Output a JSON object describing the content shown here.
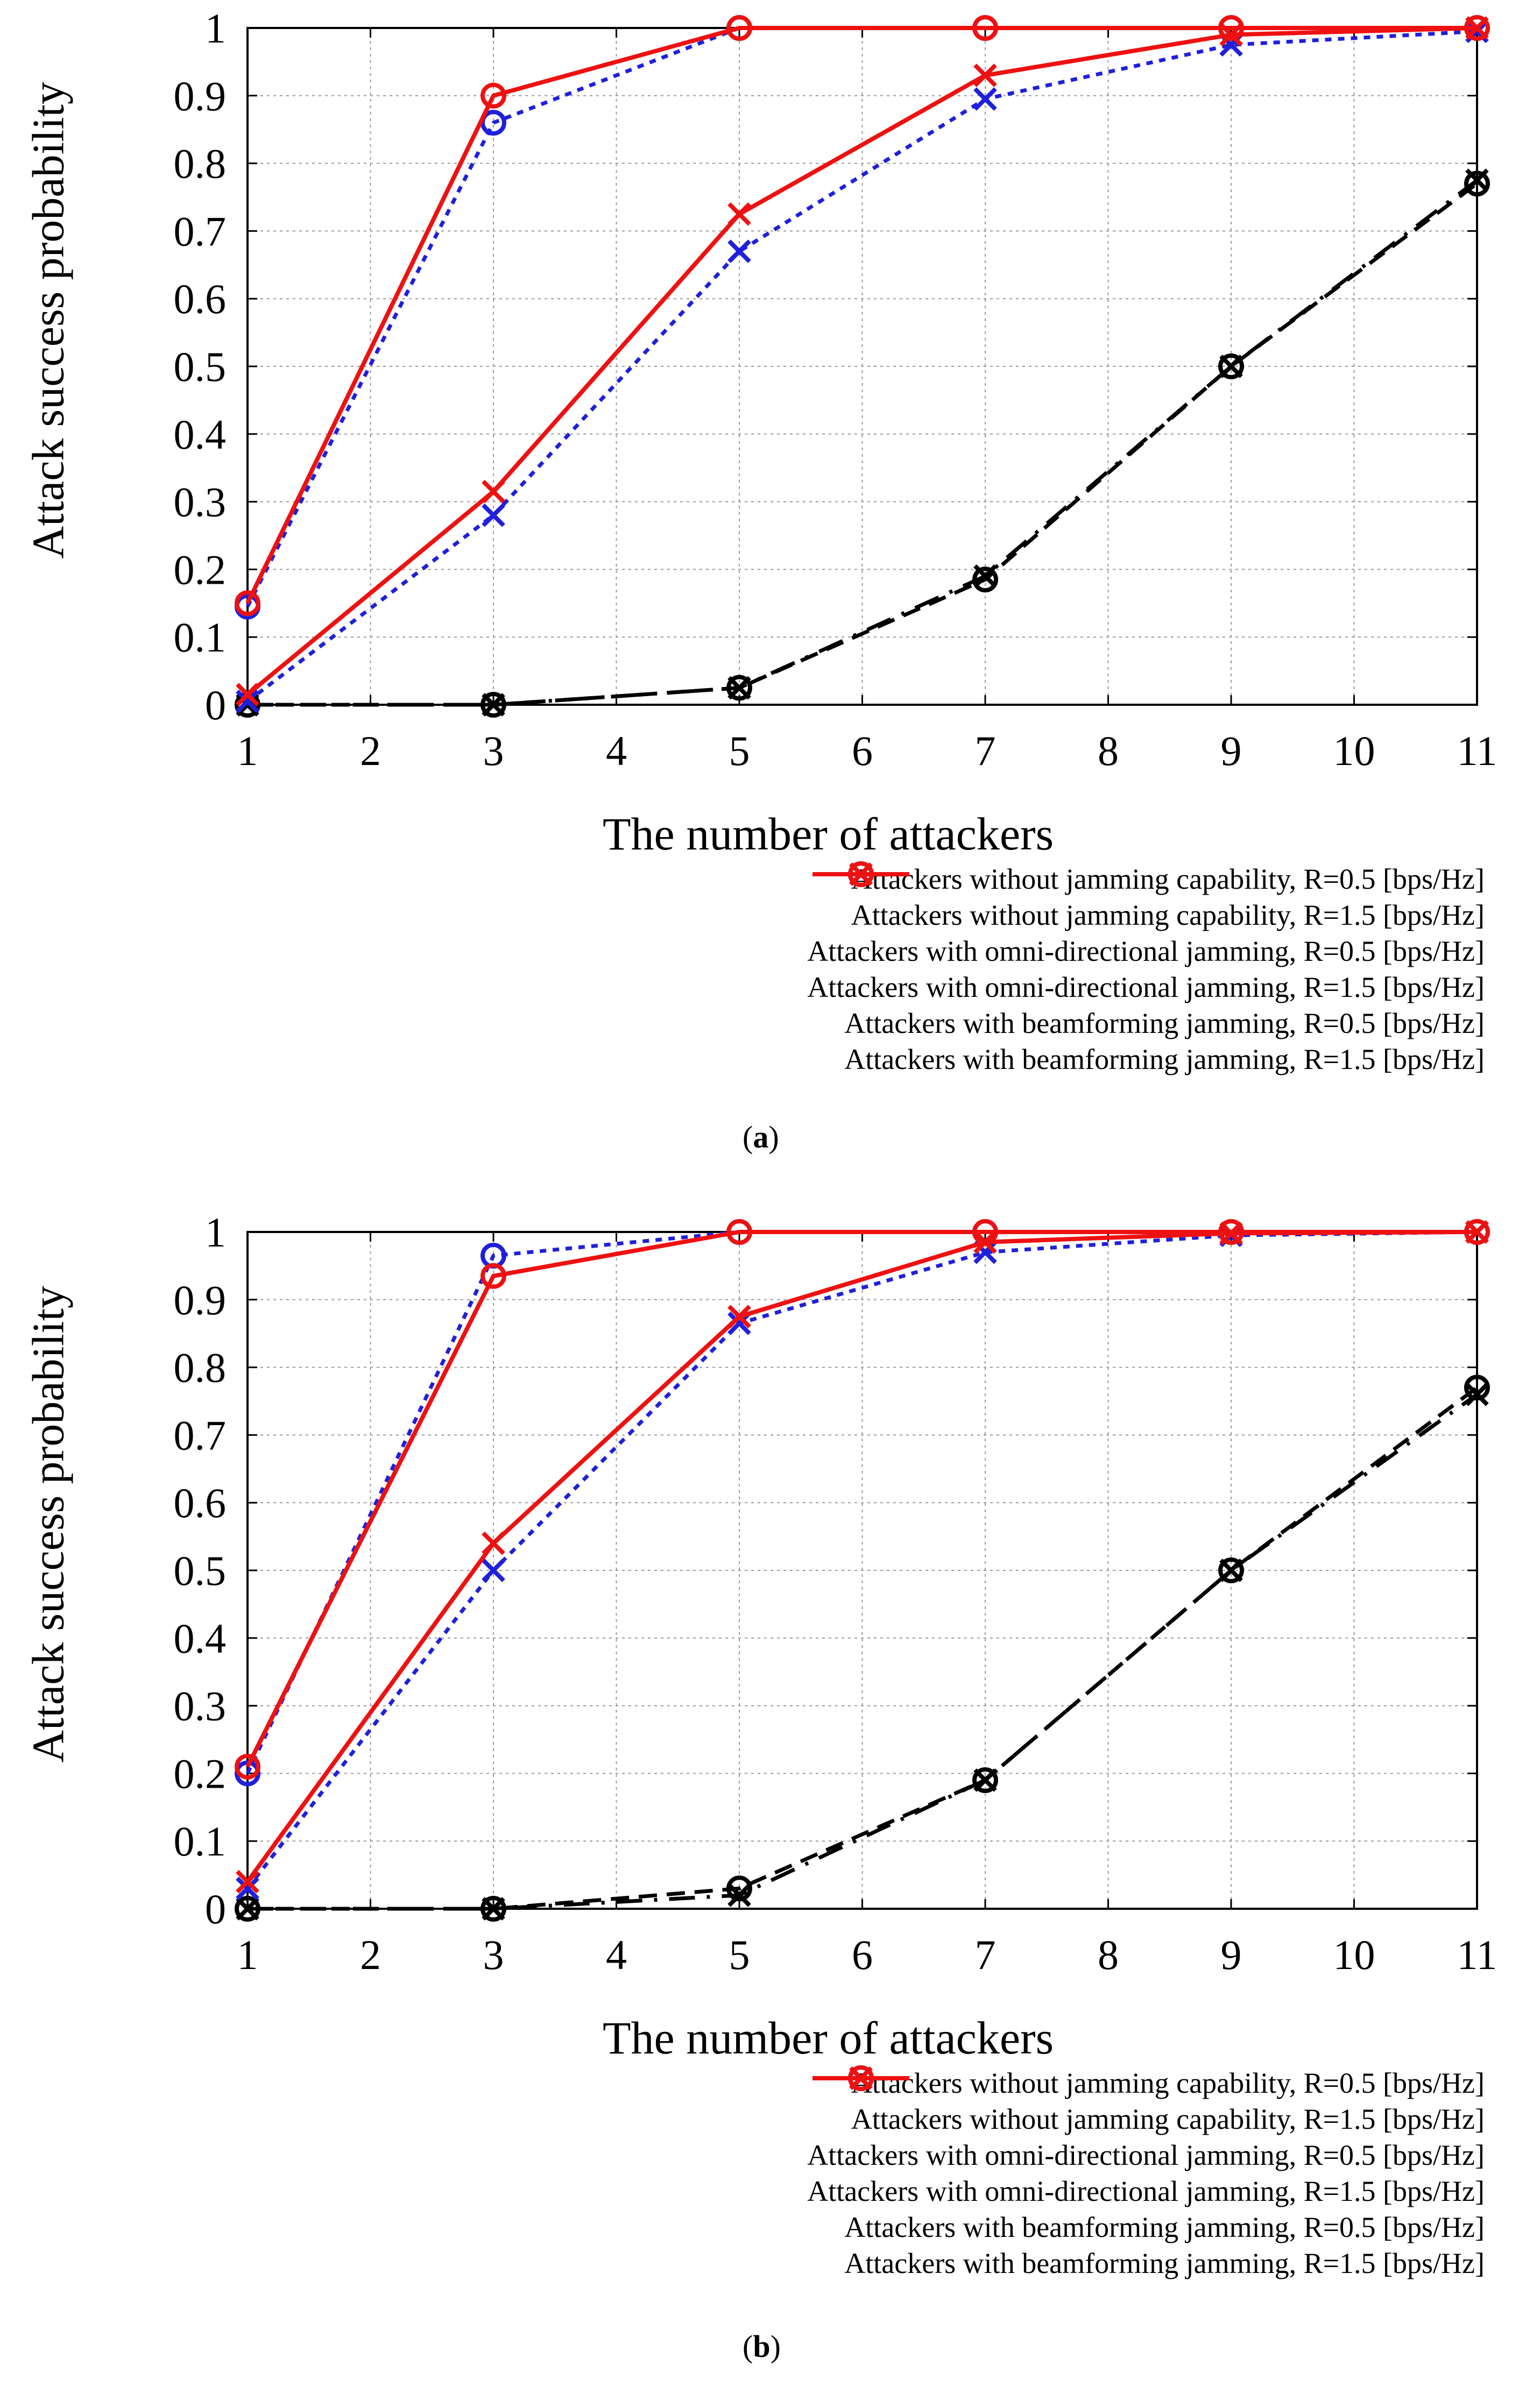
{
  "charts": [
    {
      "caption": "a",
      "chart_data": {
        "type": "line",
        "xlabel": "The number of attackers",
        "ylabel": "Attack success probability",
        "xlim": [
          1,
          11
        ],
        "ylim": [
          0,
          1
        ],
        "x_ticks": [
          "1",
          "2",
          "3",
          "4",
          "5",
          "6",
          "7",
          "8",
          "9",
          "10",
          "11"
        ],
        "y_ticks": [
          "0",
          "0.1",
          "0.2",
          "0.3",
          "0.4",
          "0.5",
          "0.6",
          "0.7",
          "0.8",
          "0.9",
          "1"
        ],
        "grid": true,
        "x": [
          1,
          3,
          5,
          7,
          9,
          11
        ],
        "series": [
          {
            "name": "Attackers without jamming capability, R=0.5 [bps/Hz]",
            "color": "#000000",
            "style": "dashdot",
            "marker": "x",
            "values": [
              0.0,
              0.0,
              0.025,
              0.19,
              0.5,
              0.775
            ]
          },
          {
            "name": "Attackers without jamming capability, R=1.5 [bps/Hz]",
            "color": "#000000",
            "style": "dash",
            "marker": "o",
            "values": [
              0.0,
              0.0,
              0.025,
              0.185,
              0.5,
              0.77
            ]
          },
          {
            "name": "Attackers with omni-directional jamming, R=0.5 [bps/Hz]",
            "color": "#1f1fdd",
            "style": "dot",
            "marker": "x",
            "values": [
              0.005,
              0.28,
              0.67,
              0.895,
              0.975,
              0.995
            ]
          },
          {
            "name": "Attackers with omni-directional jamming, R=1.5 [bps/Hz]",
            "color": "#1f1fdd",
            "style": "dot",
            "marker": "o",
            "values": [
              0.145,
              0.86,
              1.0,
              1.0,
              1.0,
              1.0
            ]
          },
          {
            "name": "Attackers with beamforming jamming, R=0.5 [bps/Hz]",
            "color": "#ee1111",
            "style": "solid",
            "marker": "x",
            "values": [
              0.015,
              0.315,
              0.725,
              0.93,
              0.99,
              1.0
            ]
          },
          {
            "name": "Attackers with beamforming jamming, R=1.5 [bps/Hz]",
            "color": "#ee1111",
            "style": "solid",
            "marker": "o",
            "values": [
              0.15,
              0.9,
              1.0,
              1.0,
              1.0,
              1.0
            ]
          }
        ]
      }
    },
    {
      "caption": "b",
      "chart_data": {
        "type": "line",
        "xlabel": "The number of attackers",
        "ylabel": "Attack success probability",
        "xlim": [
          1,
          11
        ],
        "ylim": [
          0,
          1
        ],
        "x_ticks": [
          "1",
          "2",
          "3",
          "4",
          "5",
          "6",
          "7",
          "8",
          "9",
          "10",
          "11"
        ],
        "y_ticks": [
          "0",
          "0.1",
          "0.2",
          "0.3",
          "0.4",
          "0.5",
          "0.6",
          "0.7",
          "0.8",
          "0.9",
          "1"
        ],
        "grid": true,
        "x": [
          1,
          3,
          5,
          7,
          9,
          11
        ],
        "series": [
          {
            "name": "Attackers without jamming capability, R=0.5 [bps/Hz]",
            "color": "#000000",
            "style": "dashdot",
            "marker": "x",
            "values": [
              0.0,
              0.0,
              0.02,
              0.19,
              0.5,
              0.76
            ]
          },
          {
            "name": "Attackers without jamming capability, R=1.5 [bps/Hz]",
            "color": "#000000",
            "style": "dash",
            "marker": "o",
            "values": [
              0.0,
              0.0,
              0.03,
              0.19,
              0.5,
              0.77
            ]
          },
          {
            "name": "Attackers with omni-directional jamming, R=0.5 [bps/Hz]",
            "color": "#1f1fdd",
            "style": "dot",
            "marker": "x",
            "values": [
              0.03,
              0.5,
              0.865,
              0.97,
              0.995,
              1.0
            ]
          },
          {
            "name": "Attackers with omni-directional jamming, R=1.5 [bps/Hz]",
            "color": "#1f1fdd",
            "style": "dot",
            "marker": "o",
            "values": [
              0.2,
              0.965,
              1.0,
              1.0,
              1.0,
              1.0
            ]
          },
          {
            "name": "Attackers with beamforming jamming, R=0.5 [bps/Hz]",
            "color": "#ee1111",
            "style": "solid",
            "marker": "x",
            "values": [
              0.04,
              0.54,
              0.875,
              0.985,
              0.998,
              1.0
            ]
          },
          {
            "name": "Attackers with beamforming jamming, R=1.5 [bps/Hz]",
            "color": "#ee1111",
            "style": "solid",
            "marker": "o",
            "values": [
              0.21,
              0.935,
              1.0,
              1.0,
              1.0,
              1.0
            ]
          }
        ]
      }
    }
  ]
}
